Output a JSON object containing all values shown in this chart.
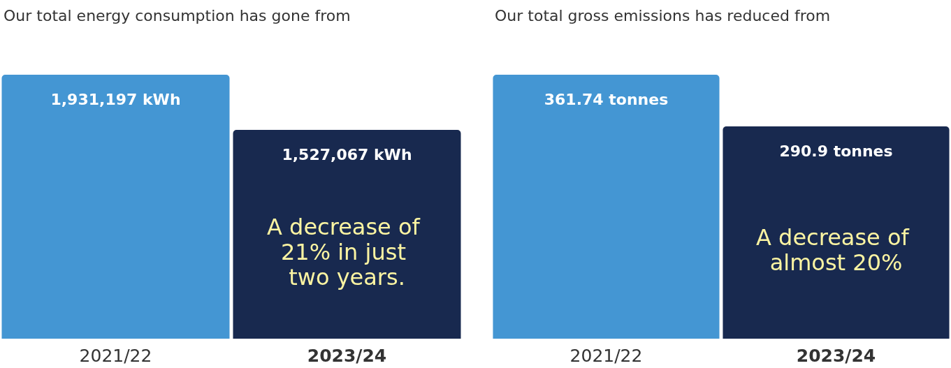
{
  "chart_data": [
    {
      "type": "bar",
      "title": "Our total energy consumption has gone from",
      "categories": [
        "2021/22",
        "2023/24"
      ],
      "values": [
        1931197,
        1527067
      ],
      "colors": [
        "#4496d3",
        "#18294f"
      ],
      "value_labels": [
        "1,931,197 kWh",
        "1,527,067 kWh"
      ],
      "annotations": [
        "A decrease of 21% in just two years."
      ]
    },
    {
      "type": "bar",
      "title": "Our total gross emissions has reduced from",
      "categories": [
        "2021/22",
        "2023/24"
      ],
      "values": [
        361.74,
        290.9
      ],
      "colors": [
        "#4496d3",
        "#18294f"
      ],
      "value_labels": [
        "361.74 tonnes",
        "290.9 tonnes"
      ],
      "annotations": [
        "A decrease of almost 20%"
      ]
    }
  ]
}
